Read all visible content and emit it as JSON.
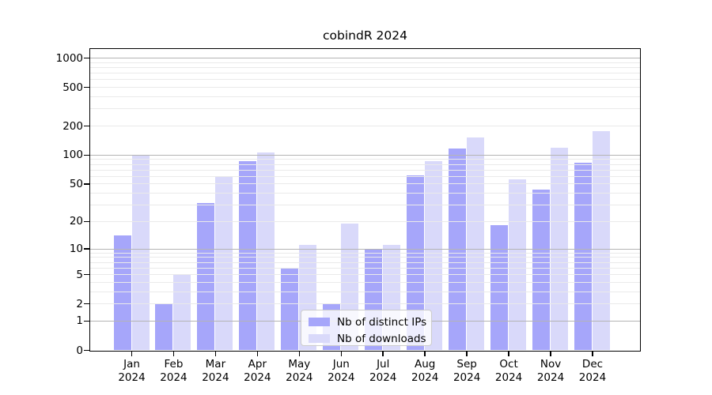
{
  "chart_data": {
    "type": "bar",
    "title": "cobindR 2024",
    "categories": [
      "Jan",
      "Feb",
      "Mar",
      "Apr",
      "May",
      "Jun",
      "Jul",
      "Aug",
      "Sep",
      "Oct",
      "Nov",
      "Dec"
    ],
    "year_label": "2024",
    "series": [
      {
        "name": "Nb of distinct IPs",
        "color": "#a6a6fa",
        "values": [
          14,
          2,
          31,
          86,
          6,
          2,
          10,
          61,
          115,
          18,
          43,
          82
        ]
      },
      {
        "name": "Nb of downloads",
        "color": "#d9d9fa",
        "values": [
          97,
          5,
          60,
          105,
          11,
          19,
          11,
          85,
          150,
          55,
          118,
          175
        ]
      }
    ],
    "xlabel": "",
    "ylabel": "",
    "y_ticks": [
      0,
      1,
      2,
      5,
      10,
      20,
      50,
      100,
      200,
      500,
      1000
    ],
    "y_scale": "log10(value+1)",
    "ylim": [
      0,
      1275
    ],
    "grid": true,
    "grid_major_values": [
      1,
      10,
      100,
      1000
    ],
    "grid_major_color": "#b4b4b4",
    "grid_minor_color": "#eaeaea",
    "legend_position": "bottom-center",
    "legend_entries": [
      "Nb of distinct IPs",
      "Nb of downloads"
    ]
  }
}
